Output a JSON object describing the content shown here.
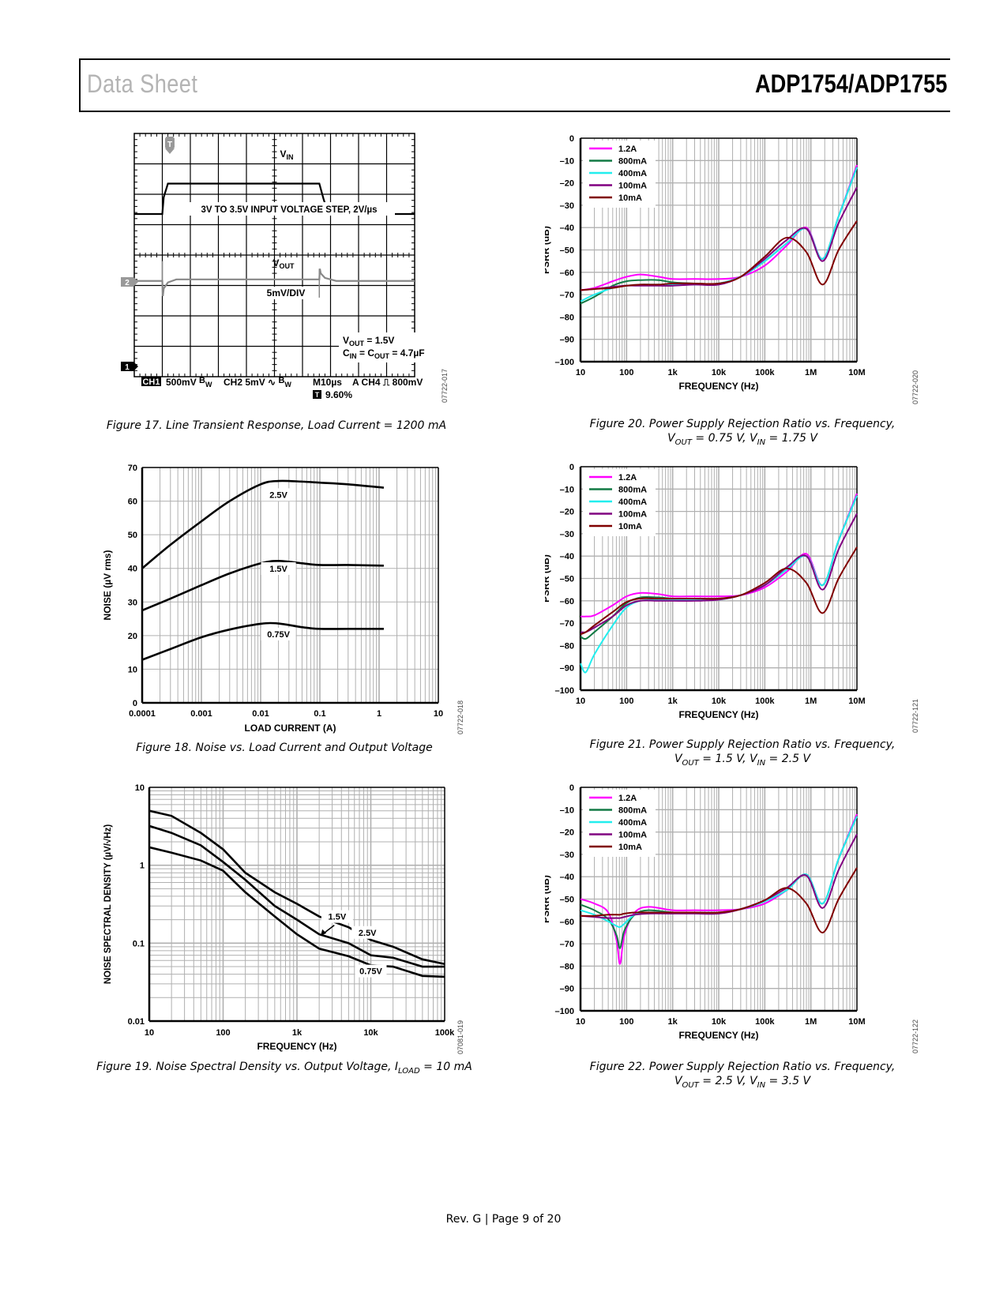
{
  "header": {
    "left": "Data Sheet",
    "right": "ADP1754/ADP1755"
  },
  "footer": "Rev. G | Page 9 of 20",
  "figures": {
    "fig17": {
      "caption": "Figure 17. Line Transient Response, Load Current = 1200 mA",
      "code": "07722-017",
      "labels": {
        "vin": "VIN",
        "step": "3V TO 3.5V INPUT VOLTAGE STEP, 2V/µs",
        "vout": "VOUT",
        "div": "5mV/DIV",
        "cond1": "VOUT = 1.5V",
        "cond2": "CIN = COUT = 4.7µF",
        "trigger_marker": "T",
        "ch2_marker": "2",
        "ch1_marker": "1"
      },
      "status_bar": {
        "ch1": "CH1",
        "ch1_scale": "500mV",
        "ch1_bw": "BW",
        "ch2": "CH2",
        "ch2_scale": "5mV",
        "ch2_bw": "BW",
        "timebase": "M10µs",
        "trigger": "A  CH4",
        "trigger_level": "800mV",
        "trigger_pos_icon": "T",
        "trigger_pos": "9.60%"
      }
    },
    "fig18": {
      "caption": "Figure 18. Noise vs. Load Current and Output Voltage",
      "code": "07722-018"
    },
    "fig19": {
      "caption": "Figure 19. Noise Spectral Density vs. Output Voltage, ILOAD = 10 mA",
      "code": "07081-019"
    },
    "fig20": {
      "caption_line1": "Figure 20. Power Supply Rejection Ratio vs. Frequency,",
      "caption_line2": "VOUT = 0.75 V, VIN = 1.75 V",
      "code": "07722-020"
    },
    "fig21": {
      "caption_line1": "Figure 21. Power Supply Rejection Ratio vs. Frequency,",
      "caption_line2": "VOUT = 1.5 V, VIN = 2.5 V",
      "code": "07722-121"
    },
    "fig22": {
      "caption_line1": "Figure 22. Power Supply Rejection Ratio vs. Frequency,",
      "caption_line2": "VOUT = 2.5 V, VIN = 3.5 V",
      "code": "07722-122"
    }
  },
  "chart_data": [
    {
      "id": "fig17",
      "type": "line",
      "title": "Line Transient Response, Load Current = 1200 mA",
      "xlabel": "time (10µs/div)",
      "ylabel": "",
      "grid": true,
      "divisions": {
        "x": 10,
        "y": 8
      },
      "series": [
        {
          "name": "VIN",
          "x_div": [
            0,
            1,
            1.05,
            1.2,
            2,
            6.6,
            6.75,
            6.9,
            8,
            10
          ],
          "y_div": [
            5.35,
            5.35,
            5.9,
            6.35,
            6.35,
            6.35,
            5.85,
            5.4,
            5.35,
            5.35
          ]
        },
        {
          "name": "VOUT",
          "x_div": [
            0,
            1,
            1.02,
            1.05,
            1.2,
            1.5,
            6.6,
            6.62,
            6.65,
            6.8,
            7.2,
            10
          ],
          "y_div": [
            3.15,
            3.15,
            2.65,
            2.9,
            3.1,
            3.2,
            3.2,
            3.55,
            3.4,
            3.25,
            3.15,
            3.15
          ]
        }
      ]
    },
    {
      "id": "fig18",
      "type": "line",
      "title": "Noise vs. Load Current and Output Voltage",
      "xlabel": "LOAD CURRENT (A)",
      "ylabel": "NOISE (µV rms)",
      "xscale": "log",
      "xlim": [
        0.0001,
        10
      ],
      "ylim": [
        0,
        70
      ],
      "xticks": [
        "0.0001",
        "0.001",
        "0.01",
        "0.1",
        "1",
        "10"
      ],
      "yticks": [
        "0",
        "10",
        "20",
        "30",
        "40",
        "50",
        "60",
        "70"
      ],
      "grid": true,
      "x": [
        0.0001,
        0.0003,
        0.001,
        0.003,
        0.01,
        0.02,
        0.05,
        0.1,
        0.3,
        1.2
      ],
      "series": [
        {
          "name": "2.5V",
          "values": [
            40,
            47,
            54,
            60,
            65,
            66,
            65.8,
            65.5,
            65,
            64
          ]
        },
        {
          "name": "1.5V",
          "values": [
            27.5,
            31,
            35,
            38.5,
            41.5,
            42.2,
            41.5,
            41,
            41,
            40.8
          ]
        },
        {
          "name": "0.75V",
          "values": [
            12.8,
            16,
            19.5,
            21.8,
            23.5,
            23.6,
            22.5,
            22,
            22,
            22
          ]
        }
      ]
    },
    {
      "id": "fig19",
      "type": "line",
      "title": "Noise Spectral Density vs. Output Voltage, ILOAD = 10 mA",
      "xlabel": "FREQUENCY (Hz)",
      "ylabel": "NOISE SPECTRAL DENSITY (µV/√Hz)",
      "xscale": "log",
      "yscale": "log",
      "xlim": [
        10,
        100000
      ],
      "ylim": [
        0.01,
        10
      ],
      "xticks": [
        "10",
        "100",
        "1k",
        "10k",
        "100k"
      ],
      "yticks": [
        "0.01",
        "0.1",
        "1",
        "10"
      ],
      "grid": true,
      "annotations": [
        "1.5V",
        "2.5V",
        "0.75V"
      ],
      "x": [
        10,
        20,
        50,
        100,
        200,
        500,
        1000,
        2000,
        5000,
        10000,
        20000,
        50000,
        100000
      ],
      "series": [
        {
          "name": "2.5V",
          "values": [
            5,
            4.3,
            2.6,
            1.6,
            0.8,
            0.45,
            0.32,
            0.22,
            0.16,
            0.11,
            0.09,
            0.062,
            0.054
          ]
        },
        {
          "name": "1.5V",
          "values": [
            3.2,
            2.6,
            1.8,
            1.1,
            0.65,
            0.3,
            0.2,
            0.13,
            0.1,
            0.07,
            0.065,
            0.05,
            0.05
          ]
        },
        {
          "name": "0.75V",
          "values": [
            1.7,
            1.45,
            1.15,
            0.85,
            0.45,
            0.22,
            0.13,
            0.085,
            0.068,
            0.052,
            0.05,
            0.038,
            0.037
          ]
        }
      ]
    },
    {
      "id": "fig20",
      "type": "line",
      "title": "Power Supply Rejection Ratio vs. Frequency, VOUT = 0.75 V, VIN = 1.75 V",
      "xlabel": "FREQUENCY (Hz)",
      "ylabel": "PSRR (dB)",
      "xscale": "log",
      "xlim": [
        10,
        10000000
      ],
      "ylim": [
        -100,
        0
      ],
      "xticks": [
        "10",
        "100",
        "1k",
        "10k",
        "100k",
        "1M",
        "10M"
      ],
      "yticks": [
        "0",
        "–10",
        "–20",
        "–30",
        "–40",
        "–50",
        "–60",
        "–70",
        "–80",
        "–90",
        "–100"
      ],
      "grid": true,
      "legend": "top-left",
      "x": [
        10,
        20,
        50,
        100,
        200,
        500,
        1000,
        3000,
        10000,
        30000,
        100000,
        300000,
        800000,
        1800000,
        4000000,
        10000000
      ],
      "series": [
        {
          "name": "1.2A",
          "color": "#ff00ff",
          "values": [
            -68,
            -67,
            -64,
            -62,
            -61,
            -62,
            -63,
            -63,
            -63,
            -62,
            -57,
            -48,
            -40,
            -54,
            -35,
            -12
          ]
        },
        {
          "name": "800mA",
          "color": "#127a45",
          "values": [
            -74,
            -71,
            -66,
            -64,
            -63.5,
            -63.5,
            -64.5,
            -65,
            -65,
            -62,
            -55,
            -47,
            -40.5,
            -54,
            -35,
            -13
          ]
        },
        {
          "name": "400mA",
          "color": "#22eeee",
          "values": [
            -73,
            -70,
            -67,
            -66,
            -65.5,
            -65.5,
            -65.5,
            -65.5,
            -65,
            -62,
            -55,
            -47,
            -40.5,
            -54,
            -35,
            -13
          ]
        },
        {
          "name": "100mA",
          "color": "#800080",
          "values": [
            -68,
            -67.5,
            -66.5,
            -66,
            -66,
            -66,
            -66,
            -65.5,
            -65.5,
            -62,
            -54,
            -45.5,
            -40.5,
            -55,
            -38,
            -22
          ]
        },
        {
          "name": "10mA",
          "color": "#800000",
          "values": [
            -68,
            -67.5,
            -67,
            -66,
            -65.5,
            -65.5,
            -65,
            -65,
            -65,
            -62,
            -53,
            -44.5,
            -51,
            -65.5,
            -50,
            -37
          ]
        }
      ]
    },
    {
      "id": "fig21",
      "type": "line",
      "title": "Power Supply Rejection Ratio vs. Frequency, VOUT = 1.5 V, VIN = 2.5 V",
      "xlabel": "FREQUENCY (Hz)",
      "ylabel": "PSRR (dB)",
      "xscale": "log",
      "xlim": [
        10,
        10000000
      ],
      "ylim": [
        -100,
        0
      ],
      "xticks": [
        "10",
        "100",
        "1k",
        "10k",
        "100k",
        "1M",
        "10M"
      ],
      "yticks": [
        "0",
        "–10",
        "–20",
        "–30",
        "–40",
        "–50",
        "–60",
        "–70",
        "–80",
        "–90",
        "–100"
      ],
      "grid": true,
      "legend": "top-left",
      "x": [
        10,
        13,
        20,
        50,
        100,
        200,
        500,
        1000,
        3000,
        10000,
        30000,
        100000,
        300000,
        800000,
        1800000,
        4000000,
        10000000
      ],
      "series": [
        {
          "name": "1.2A",
          "color": "#ff00ff",
          "values": [
            -67,
            -67,
            -66.5,
            -62,
            -58,
            -56.5,
            -57,
            -58,
            -58,
            -58,
            -57.5,
            -54,
            -47,
            -39,
            -53,
            -33,
            -12
          ]
        },
        {
          "name": "800mA",
          "color": "#127a45",
          "values": [
            -76,
            -77,
            -74,
            -67,
            -61,
            -58.5,
            -58.5,
            -59,
            -59,
            -59,
            -57.5,
            -53,
            -46,
            -40,
            -53,
            -33,
            -13
          ]
        },
        {
          "name": "400mA",
          "color": "#22eeee",
          "values": [
            -88,
            -92,
            -84,
            -71,
            -63,
            -60,
            -59.5,
            -59.5,
            -59.5,
            -59.5,
            -57.5,
            -53,
            -46,
            -40,
            -53,
            -33,
            -13
          ]
        },
        {
          "name": "100mA",
          "color": "#800080",
          "values": [
            -74,
            -74,
            -72,
            -67,
            -62,
            -60,
            -60,
            -60,
            -60,
            -59.5,
            -57.5,
            -53,
            -45,
            -40,
            -55,
            -37,
            -21
          ]
        },
        {
          "name": "10mA",
          "color": "#800000",
          "values": [
            -75,
            -74,
            -71,
            -65,
            -60.5,
            -59,
            -59,
            -59,
            -59,
            -59,
            -57.5,
            -52,
            -45.5,
            -52,
            -65.5,
            -50,
            -36
          ]
        }
      ]
    },
    {
      "id": "fig22",
      "type": "line",
      "title": "Power Supply Rejection Ratio vs. Frequency, VOUT = 2.5 V, VIN = 3.5 V",
      "xlabel": "FREQUENCY (Hz)",
      "ylabel": "PSRR (dB)",
      "xscale": "log",
      "xlim": [
        10,
        10000000
      ],
      "ylim": [
        -100,
        0
      ],
      "xticks": [
        "10",
        "100",
        "1k",
        "10k",
        "100k",
        "1M",
        "10M"
      ],
      "yticks": [
        "0",
        "–10",
        "–20",
        "–30",
        "–40",
        "–50",
        "–60",
        "–70",
        "–80",
        "–90",
        "–100"
      ],
      "grid": true,
      "legend": "top-left",
      "x": [
        10,
        20,
        40,
        60,
        72,
        90,
        150,
        300,
        1000,
        3000,
        10000,
        30000,
        100000,
        300000,
        800000,
        1800000,
        4000000,
        10000000
      ],
      "series": [
        {
          "name": "1.2A",
          "color": "#ff00ff",
          "values": [
            -50,
            -52,
            -56,
            -68,
            -79,
            -66,
            -56,
            -53.5,
            -55,
            -55,
            -55,
            -54.5,
            -52,
            -46,
            -39,
            -52,
            -32,
            -12
          ]
        },
        {
          "name": "800mA",
          "color": "#127a45",
          "values": [
            -52.5,
            -55,
            -59,
            -66,
            -72,
            -64,
            -57,
            -55,
            -56,
            -56,
            -56,
            -54.5,
            -51,
            -46,
            -39,
            -52,
            -32,
            -13
          ]
        },
        {
          "name": "400mA",
          "color": "#22eeee",
          "values": [
            -55,
            -57,
            -60,
            -62,
            -62.5,
            -61,
            -57,
            -56,
            -56,
            -56,
            -56,
            -54.5,
            -51,
            -46,
            -39,
            -52,
            -32,
            -13
          ]
        },
        {
          "name": "100mA",
          "color": "#800080",
          "values": [
            -57.5,
            -58,
            -58.5,
            -58.5,
            -58.5,
            -58,
            -57,
            -56.5,
            -56.5,
            -56.5,
            -56.5,
            -54.5,
            -50.5,
            -45,
            -39.5,
            -54,
            -37,
            -21
          ]
        },
        {
          "name": "10mA",
          "color": "#800000",
          "values": [
            -57.5,
            -57.5,
            -57,
            -57,
            -57,
            -56.5,
            -56,
            -56,
            -56,
            -56,
            -56,
            -54.5,
            -50.5,
            -45,
            -52,
            -65,
            -50,
            -36
          ]
        }
      ]
    }
  ]
}
